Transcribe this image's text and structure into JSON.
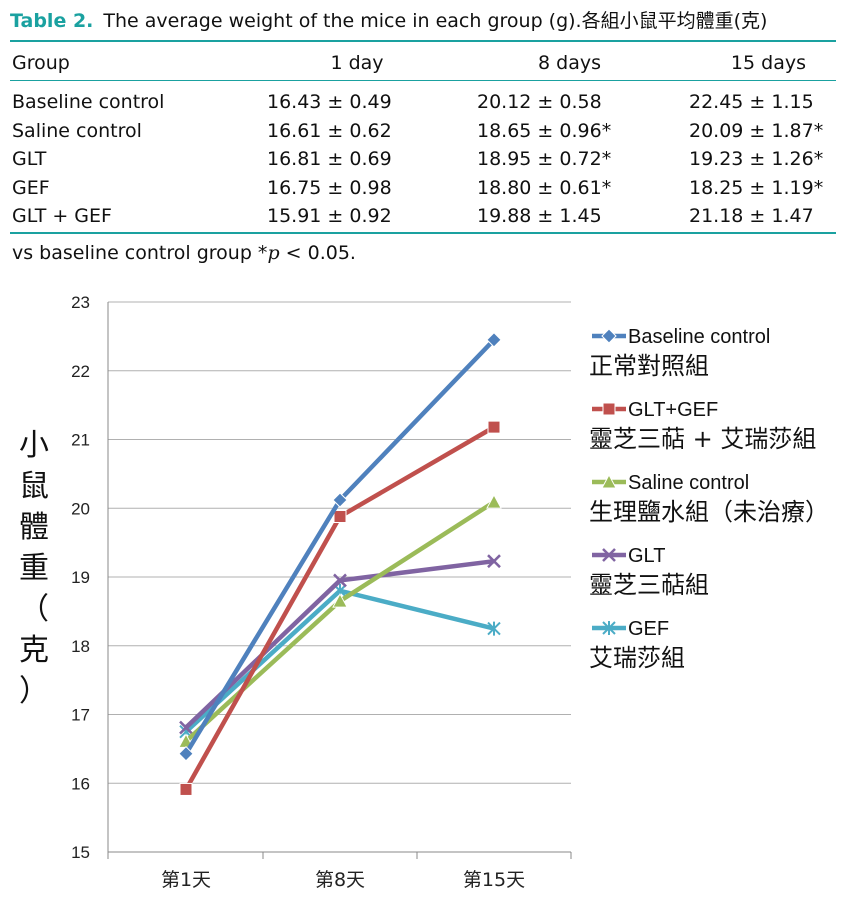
{
  "table": {
    "label": "Table 2.",
    "title": "The average weight of the mice in each group (g).各組小鼠平均體重(克)",
    "headers": [
      "Group",
      "1 day",
      "8 days",
      "15 days"
    ],
    "rows": [
      {
        "group": "Baseline control",
        "d1": "16.43 ± 0.49",
        "d8": "20.12 ± 0.58",
        "d15": "22.45 ± 1.15"
      },
      {
        "group": "Saline control",
        "d1": "16.61 ± 0.62",
        "d8": "18.65 ± 0.96*",
        "d15": "20.09 ± 1.87*"
      },
      {
        "group": "GLT",
        "d1": "16.81 ± 0.69",
        "d8": "18.95 ± 0.72*",
        "d15": "19.23 ± 1.26*"
      },
      {
        "group": "GEF",
        "d1": "16.75 ± 0.98",
        "d8": "18.80 ± 0.61*",
        "d15": "18.25 ± 1.19*"
      },
      {
        "group": "GLT + GEF",
        "d1": "15.91 ± 0.92",
        "d8": "19.88 ± 1.45",
        "d15": "21.18 ± 1.47"
      }
    ],
    "footnote_text": "vs baseline control group *",
    "footnote_var": "p",
    "footnote_tail": " < 0.05."
  },
  "chart_data": {
    "type": "line",
    "categories": [
      "第1天",
      "第8天",
      "第15天"
    ],
    "ylabel": "小鼠體重（克）",
    "ylim": [
      15,
      23
    ],
    "yticks": [
      15,
      16,
      17,
      18,
      19,
      20,
      21,
      22,
      23
    ],
    "grid": true,
    "legend_position": "right",
    "series": [
      {
        "name": "Baseline control",
        "name_zh": "正常對照組",
        "values": [
          16.43,
          20.12,
          22.45
        ],
        "color": "#4f81bd",
        "marker": "diamond"
      },
      {
        "name": "GLT+GEF",
        "name_zh": "靈芝三萜 + 艾瑞莎組",
        "values": [
          15.91,
          19.88,
          21.18
        ],
        "color": "#c0504d",
        "marker": "square"
      },
      {
        "name": "Saline control",
        "name_zh": "生理鹽水組（未治療）",
        "values": [
          16.61,
          18.65,
          20.09
        ],
        "color": "#9bbb59",
        "marker": "triangle"
      },
      {
        "name": "GLT",
        "name_zh": "靈芝三萜組",
        "values": [
          16.81,
          18.95,
          19.23
        ],
        "color": "#8064a2",
        "marker": "x"
      },
      {
        "name": "GEF",
        "name_zh": "艾瑞莎組",
        "values": [
          16.75,
          18.8,
          18.25
        ],
        "color": "#4bacc6",
        "marker": "star"
      }
    ]
  }
}
